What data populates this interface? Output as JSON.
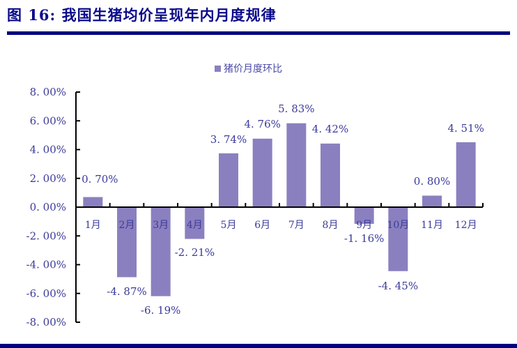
{
  "header": {
    "title": "图 16:  我国生猪均价呈现年内月度规律"
  },
  "legend": {
    "items": [
      {
        "label": "猪价月度环比",
        "color": "#8b80bf"
      }
    ]
  },
  "colors": {
    "bar": "#8b80bf",
    "text": "#3a3a9a",
    "axis": "#000000",
    "rule": "#000080"
  },
  "chart_data": {
    "type": "bar",
    "title": "",
    "xlabel": "",
    "ylabel": "",
    "categories": [
      "1月",
      "2月",
      "3月",
      "4月",
      "5月",
      "6月",
      "7月",
      "8月",
      "9月",
      "10月",
      "11月",
      "12月"
    ],
    "series": [
      {
        "name": "猪价月度环比",
        "values": [
          0.7,
          -4.87,
          -6.19,
          -2.21,
          3.74,
          4.76,
          5.83,
          4.42,
          -1.16,
          -4.45,
          0.8,
          4.51
        ]
      }
    ],
    "data_labels": [
      "0.70%",
      "-4.87%",
      "-6.19%",
      "-2.21%",
      "3.74%",
      "4.76%",
      "5.83%",
      "4.42%",
      "-1.16%",
      "-4.45%",
      "0.80%",
      "4.51%"
    ],
    "yticks": [
      "8.00%",
      "6.00%",
      "4.00%",
      "2.00%",
      "0.00%",
      "-2.00%",
      "-4.00%",
      "-6.00%",
      "-8.00%"
    ],
    "ylim": [
      -8,
      8
    ],
    "grid": false,
    "legend_position": "top"
  }
}
